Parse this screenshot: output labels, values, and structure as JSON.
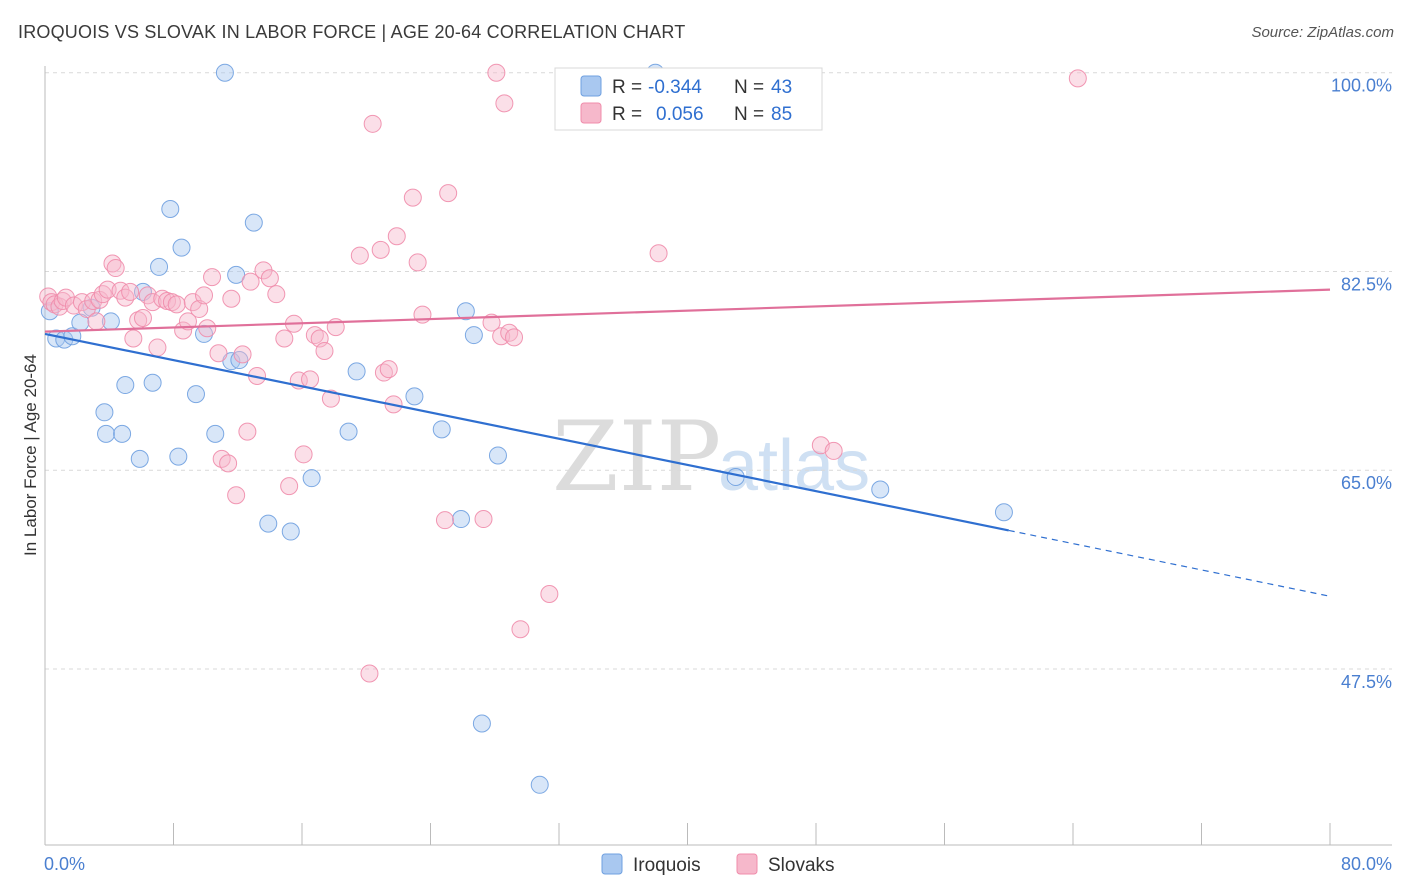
{
  "header": {
    "title": "IROQUOIS VS SLOVAK IN LABOR FORCE | AGE 20-64 CORRELATION CHART",
    "source": "Source: ZipAtlas.com"
  },
  "legend": {
    "r_label": "R =",
    "n_label": "N =",
    "rows": [
      {
        "r": "-0.344",
        "n": "43",
        "color": "#a9c8f0"
      },
      {
        "r": "0.056",
        "n": "85",
        "color": "#f6b8cb"
      }
    ]
  },
  "watermark": {
    "zip": "ZIP",
    "atlas": "atlas"
  },
  "chart_data": {
    "type": "scatter",
    "title": "IROQUOIS VS SLOVAK IN LABOR FORCE | AGE 20-64 CORRELATION CHART",
    "xlabel": "",
    "ylabel": "In Labor Force | Age 20-64",
    "xlim": [
      0,
      80
    ],
    "ylim": [
      32,
      102
    ],
    "x_tick_labels": [
      "0.0%",
      "80.0%"
    ],
    "y_ticks": [
      47.5,
      65.0,
      82.5,
      100.0
    ],
    "y_tick_labels": [
      "47.5%",
      "65.0%",
      "82.5%",
      "100.0%"
    ],
    "grid": "horizontal dashed",
    "legend_position": "top-center",
    "series": [
      {
        "name": "Iroquois",
        "color": "#6fa0e0",
        "fill": "#a9c8f0",
        "trend": {
          "x0": 0,
          "y0": 77.0,
          "x1": 60,
          "y1": 59.7,
          "dash_to_x": 80,
          "dash_to_y": 53.9
        },
        "points": [
          [
            0.3,
            79.0
          ],
          [
            0.7,
            76.6
          ],
          [
            1.2,
            76.5
          ],
          [
            1.7,
            76.8
          ],
          [
            2.2,
            78.0
          ],
          [
            2.9,
            79.3
          ],
          [
            3.7,
            70.1
          ],
          [
            3.8,
            68.2
          ],
          [
            4.1,
            78.1
          ],
          [
            4.8,
            68.2
          ],
          [
            5.0,
            72.5
          ],
          [
            5.9,
            66.0
          ],
          [
            6.1,
            80.7
          ],
          [
            6.7,
            72.7
          ],
          [
            7.1,
            82.9
          ],
          [
            7.8,
            88.0
          ],
          [
            8.3,
            66.2
          ],
          [
            8.5,
            84.6
          ],
          [
            9.4,
            71.7
          ],
          [
            9.9,
            77.0
          ],
          [
            10.6,
            68.2
          ],
          [
            11.2,
            100.0
          ],
          [
            11.6,
            74.6
          ],
          [
            11.9,
            82.2
          ],
          [
            12.1,
            74.7
          ],
          [
            13.0,
            86.8
          ],
          [
            13.9,
            60.3
          ],
          [
            15.3,
            59.6
          ],
          [
            16.6,
            64.3
          ],
          [
            18.9,
            68.4
          ],
          [
            19.4,
            73.7
          ],
          [
            23.0,
            71.5
          ],
          [
            24.7,
            68.6
          ],
          [
            25.9,
            60.7
          ],
          [
            26.2,
            79.0
          ],
          [
            26.7,
            76.9
          ],
          [
            27.2,
            42.7
          ],
          [
            28.2,
            66.3
          ],
          [
            30.8,
            37.3
          ],
          [
            38.0,
            100.0
          ],
          [
            43.0,
            64.4
          ],
          [
            52.0,
            63.3
          ],
          [
            59.7,
            61.3
          ]
        ]
      },
      {
        "name": "Slovaks",
        "color": "#f08cab",
        "fill": "#f6b8cb",
        "trend": {
          "x0": 0,
          "y0": 77.2,
          "x1": 80,
          "y1": 80.9
        },
        "points": [
          [
            0.2,
            80.3
          ],
          [
            0.4,
            79.8
          ],
          [
            0.6,
            79.6
          ],
          [
            0.9,
            79.4
          ],
          [
            1.1,
            79.9
          ],
          [
            1.3,
            80.2
          ],
          [
            1.8,
            79.5
          ],
          [
            2.3,
            79.8
          ],
          [
            2.6,
            79.2
          ],
          [
            3.0,
            79.9
          ],
          [
            3.2,
            78.1
          ],
          [
            3.4,
            80.0
          ],
          [
            3.6,
            80.5
          ],
          [
            3.9,
            80.9
          ],
          [
            4.2,
            83.2
          ],
          [
            4.4,
            82.8
          ],
          [
            4.7,
            80.8
          ],
          [
            5.0,
            80.2
          ],
          [
            5.3,
            80.7
          ],
          [
            5.5,
            76.6
          ],
          [
            5.8,
            78.2
          ],
          [
            6.1,
            78.4
          ],
          [
            6.4,
            80.4
          ],
          [
            6.7,
            79.8
          ],
          [
            7.0,
            75.8
          ],
          [
            7.3,
            80.1
          ],
          [
            7.6,
            79.9
          ],
          [
            7.9,
            79.8
          ],
          [
            8.2,
            79.6
          ],
          [
            8.6,
            77.3
          ],
          [
            8.9,
            78.1
          ],
          [
            9.2,
            79.8
          ],
          [
            9.6,
            79.2
          ],
          [
            9.9,
            80.4
          ],
          [
            10.1,
            77.5
          ],
          [
            10.4,
            82.0
          ],
          [
            10.8,
            75.3
          ],
          [
            11.0,
            66.0
          ],
          [
            11.4,
            65.6
          ],
          [
            11.6,
            80.1
          ],
          [
            11.9,
            62.8
          ],
          [
            12.3,
            75.2
          ],
          [
            12.6,
            68.4
          ],
          [
            12.8,
            81.6
          ],
          [
            13.2,
            73.3
          ],
          [
            13.6,
            82.6
          ],
          [
            14.0,
            81.9
          ],
          [
            14.4,
            80.5
          ],
          [
            14.9,
            76.6
          ],
          [
            15.2,
            63.6
          ],
          [
            15.5,
            77.9
          ],
          [
            15.8,
            72.9
          ],
          [
            16.1,
            66.4
          ],
          [
            16.5,
            73.0
          ],
          [
            16.8,
            76.9
          ],
          [
            17.1,
            76.6
          ],
          [
            17.4,
            75.5
          ],
          [
            17.8,
            71.3
          ],
          [
            18.1,
            77.6
          ],
          [
            19.6,
            83.9
          ],
          [
            20.2,
            47.1
          ],
          [
            20.4,
            95.5
          ],
          [
            20.9,
            84.4
          ],
          [
            21.1,
            73.6
          ],
          [
            21.4,
            73.9
          ],
          [
            21.7,
            70.8
          ],
          [
            21.9,
            85.6
          ],
          [
            22.9,
            89.0
          ],
          [
            23.2,
            83.3
          ],
          [
            23.5,
            78.7
          ],
          [
            24.9,
            60.6
          ],
          [
            25.1,
            89.4
          ],
          [
            27.3,
            60.7
          ],
          [
            27.8,
            78.0
          ],
          [
            28.1,
            100.0
          ],
          [
            28.4,
            76.8
          ],
          [
            28.6,
            97.3
          ],
          [
            28.9,
            77.1
          ],
          [
            29.2,
            76.7
          ],
          [
            29.6,
            51.0
          ],
          [
            31.4,
            54.1
          ],
          [
            38.2,
            84.1
          ],
          [
            48.3,
            67.2
          ],
          [
            49.1,
            66.7
          ],
          [
            64.3,
            99.5
          ]
        ]
      }
    ]
  }
}
